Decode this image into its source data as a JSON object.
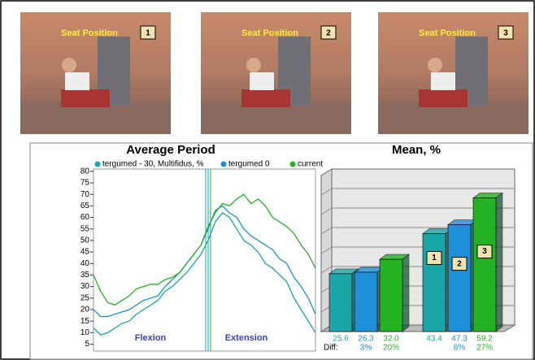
{
  "photos": [
    {
      "label": "Seat Position",
      "number": "1"
    },
    {
      "label": "Seat Position",
      "number": "2"
    },
    {
      "label": "Seat Position",
      "number": "3"
    }
  ],
  "chart_data": [
    {
      "type": "line",
      "title": "Average Period",
      "categories": [
        null,
        null,
        null,
        null,
        null,
        null,
        null,
        null,
        null,
        null,
        null,
        null,
        null,
        null,
        null,
        null,
        null,
        null,
        null,
        null,
        null,
        null,
        null,
        null,
        null,
        null,
        null,
        null,
        null,
        null,
        null,
        null
      ],
      "series": [
        {
          "name": "tergumed - 30, Multifidus, %",
          "color": "#1aa6a6",
          "values": [
            12,
            9,
            10,
            12,
            14,
            15,
            18,
            20,
            22,
            24,
            28,
            30,
            33,
            36,
            40,
            44,
            50,
            58,
            62,
            60,
            55,
            50,
            48,
            45,
            40,
            38,
            35,
            32,
            25,
            20,
            15,
            10
          ]
        },
        {
          "name": "tergumed 0",
          "color": "#1e90d8",
          "values": [
            20,
            17,
            17,
            18,
            19,
            20,
            22,
            24,
            25,
            26,
            30,
            33,
            36,
            40,
            44,
            48,
            55,
            63,
            65,
            62,
            60,
            55,
            52,
            50,
            48,
            46,
            42,
            40,
            34,
            30,
            25,
            18
          ]
        },
        {
          "name": "current",
          "color": "#22b222",
          "values": [
            35,
            28,
            23,
            22,
            24,
            26,
            29,
            30,
            31,
            31,
            33,
            34,
            36,
            40,
            44,
            48,
            56,
            62,
            66,
            65,
            68,
            70,
            66,
            68,
            65,
            60,
            58,
            56,
            53,
            48,
            44,
            38
          ]
        }
      ],
      "ylim": [
        2,
        81
      ],
      "yticks": [
        5,
        10,
        15,
        20,
        25,
        30,
        35,
        40,
        45,
        50,
        55,
        60,
        65,
        70,
        75,
        80
      ],
      "annotations": [
        "Flexion",
        "Extension"
      ]
    },
    {
      "type": "bar3d",
      "title": "Mean, %",
      "categories": [
        null,
        null
      ],
      "series": [
        {
          "color": "#1aa6a6",
          "values": [
            25.6,
            43.4
          ],
          "value_labels": [
            "25.6",
            "43.4"
          ],
          "diffs": [
            null,
            null
          ],
          "marker": "1"
        },
        {
          "color": "#1e90d8",
          "values": [
            26.3,
            47.3
          ],
          "value_labels": [
            "26.3",
            "47.3"
          ],
          "diffs": [
            "3%",
            "8%"
          ],
          "marker": "2"
        },
        {
          "color": "#22b222",
          "values": [
            32.0,
            59.2
          ],
          "value_labels": [
            "32.0",
            "59.2"
          ],
          "diffs": [
            "20%",
            "27%"
          ],
          "marker": "3"
        }
      ],
      "ylim": [
        0,
        72
      ],
      "diff_label": "Diff:"
    }
  ]
}
